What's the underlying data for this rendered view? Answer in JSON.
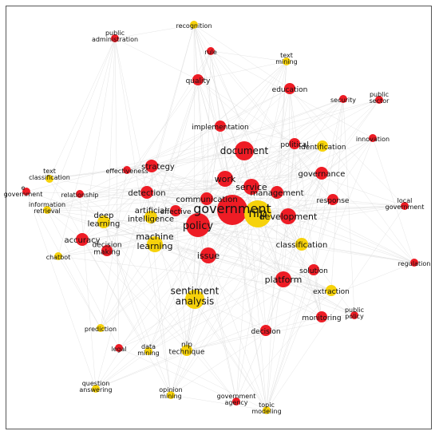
{
  "colors": {
    "red": "#ee1c25",
    "yellow": "#f6d20b",
    "edge": "#d9d9d9",
    "border": "#555555"
  },
  "nodes": [
    {
      "id": "government",
      "lines": [
        "government"
      ],
      "color": "red",
      "weight": 10
    },
    {
      "id": "nlp",
      "lines": [
        "nlp"
      ],
      "color": "yellow",
      "weight": 9
    },
    {
      "id": "policy",
      "lines": [
        "policy"
      ],
      "color": "red",
      "weight": 8
    },
    {
      "id": "document",
      "lines": [
        "document"
      ],
      "color": "red",
      "weight": 6
    },
    {
      "id": "development",
      "lines": [
        "development"
      ],
      "color": "red",
      "weight": 5
    },
    {
      "id": "sentiment analysis",
      "lines": [
        "sentiment",
        "analysis"
      ],
      "color": "yellow",
      "weight": 6
    },
    {
      "id": "machine learning",
      "lines": [
        "machine",
        "learning"
      ],
      "color": "yellow",
      "weight": 5
    },
    {
      "id": "service",
      "lines": [
        "service"
      ],
      "color": "red",
      "weight": 5
    },
    {
      "id": "communication",
      "lines": [
        "communication"
      ],
      "color": "red",
      "weight": 4
    },
    {
      "id": "work",
      "lines": [
        "work"
      ],
      "color": "red",
      "weight": 5
    },
    {
      "id": "management",
      "lines": [
        "management"
      ],
      "color": "red",
      "weight": 4
    },
    {
      "id": "issue",
      "lines": [
        "issue"
      ],
      "color": "red",
      "weight": 5
    },
    {
      "id": "platform",
      "lines": [
        "platform"
      ],
      "color": "red",
      "weight": 5
    },
    {
      "id": "governance",
      "lines": [
        "governance"
      ],
      "color": "red",
      "weight": 4
    },
    {
      "id": "classification",
      "lines": [
        "classification"
      ],
      "color": "yellow",
      "weight": 4
    },
    {
      "id": "strategy",
      "lines": [
        "strategy"
      ],
      "color": "red",
      "weight": 4
    },
    {
      "id": "detection",
      "lines": [
        "detection"
      ],
      "color": "red",
      "weight": 4
    },
    {
      "id": "effective",
      "lines": [
        "effective"
      ],
      "color": "red",
      "weight": 3
    },
    {
      "id": "artificial intelligence",
      "lines": [
        "artificial",
        "intelligence"
      ],
      "color": "yellow",
      "weight": 4
    },
    {
      "id": "deep learning",
      "lines": [
        "deep",
        "learning"
      ],
      "color": "yellow",
      "weight": 4
    },
    {
      "id": "accuracy",
      "lines": [
        "accuracy"
      ],
      "color": "red",
      "weight": 4
    },
    {
      "id": "decision making",
      "lines": [
        "decision",
        "making"
      ],
      "color": "red",
      "weight": 3
    },
    {
      "id": "quality",
      "lines": [
        "quality"
      ],
      "color": "red",
      "weight": 3
    },
    {
      "id": "implementation",
      "lines": [
        "implementation"
      ],
      "color": "red",
      "weight": 3
    },
    {
      "id": "political",
      "lines": [
        "political"
      ],
      "color": "red",
      "weight": 3
    },
    {
      "id": "identification",
      "lines": [
        "identification"
      ],
      "color": "yellow",
      "weight": 3
    },
    {
      "id": "education",
      "lines": [
        "education"
      ],
      "color": "red",
      "weight": 3
    },
    {
      "id": "response",
      "lines": [
        "response"
      ],
      "color": "red",
      "weight": 3
    },
    {
      "id": "solution",
      "lines": [
        "solution"
      ],
      "color": "red",
      "weight": 3
    },
    {
      "id": "extraction",
      "lines": [
        "extraction"
      ],
      "color": "yellow",
      "weight": 3
    },
    {
      "id": "monitoring",
      "lines": [
        "monitoring"
      ],
      "color": "red",
      "weight": 3
    },
    {
      "id": "decision",
      "lines": [
        "decision"
      ],
      "color": "red",
      "weight": 3
    },
    {
      "id": "nlp technique",
      "lines": [
        "nlp",
        "technique"
      ],
      "color": "yellow",
      "weight": 3
    },
    {
      "id": "effectiveness",
      "lines": [
        "effectiveness"
      ],
      "color": "red",
      "weight": 2
    },
    {
      "id": "text classification",
      "lines": [
        "text",
        "classification"
      ],
      "color": "yellow",
      "weight": 2
    },
    {
      "id": "e-government",
      "lines": [
        "e",
        "government"
      ],
      "color": "red",
      "weight": 2
    },
    {
      "id": "relationship",
      "lines": [
        "relationship"
      ],
      "color": "red",
      "weight": 2
    },
    {
      "id": "information retrieval",
      "lines": [
        "information",
        "retrieval"
      ],
      "color": "yellow",
      "weight": 2
    },
    {
      "id": "chatbot",
      "lines": [
        "chatbot"
      ],
      "color": "yellow",
      "weight": 2
    },
    {
      "id": "prediction",
      "lines": [
        "prediction"
      ],
      "color": "yellow",
      "weight": 2
    },
    {
      "id": "legal",
      "lines": [
        "legal"
      ],
      "color": "red",
      "weight": 2
    },
    {
      "id": "data mining",
      "lines": [
        "data",
        "mining"
      ],
      "color": "yellow",
      "weight": 2
    },
    {
      "id": "question answering",
      "lines": [
        "question",
        "answering"
      ],
      "color": "yellow",
      "weight": 2
    },
    {
      "id": "opinion mining",
      "lines": [
        "opinion",
        "mining"
      ],
      "color": "yellow",
      "weight": 2
    },
    {
      "id": "government agency",
      "lines": [
        "government",
        "agency"
      ],
      "color": "red",
      "weight": 2
    },
    {
      "id": "topic modeling",
      "lines": [
        "topic",
        "modeling"
      ],
      "color": "yellow",
      "weight": 2
    },
    {
      "id": "public policy",
      "lines": [
        "public",
        "policy"
      ],
      "color": "red",
      "weight": 2
    },
    {
      "id": "regulation",
      "lines": [
        "regulation"
      ],
      "color": "red",
      "weight": 2
    },
    {
      "id": "local government",
      "lines": [
        "local",
        "government"
      ],
      "color": "red",
      "weight": 2
    },
    {
      "id": "innovation",
      "lines": [
        "innovation"
      ],
      "color": "red",
      "weight": 2
    },
    {
      "id": "security",
      "lines": [
        "security"
      ],
      "color": "red",
      "weight": 2
    },
    {
      "id": "public sector",
      "lines": [
        "public",
        "sector"
      ],
      "color": "red",
      "weight": 2
    },
    {
      "id": "text mining",
      "lines": [
        "text",
        "mining"
      ],
      "color": "yellow",
      "weight": 2
    },
    {
      "id": "rule",
      "lines": [
        "rule"
      ],
      "color": "red",
      "weight": 2
    },
    {
      "id": "recognition",
      "lines": [
        "recognition"
      ],
      "color": "yellow",
      "weight": 2
    },
    {
      "id": "public administration",
      "lines": [
        "public",
        "administration"
      ],
      "color": "red",
      "weight": 2
    }
  ]
}
